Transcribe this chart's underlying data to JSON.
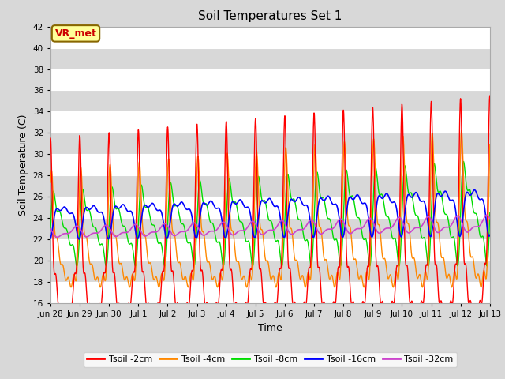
{
  "title": "Soil Temperatures Set 1",
  "xlabel": "Time",
  "ylabel": "Soil Temperature (C)",
  "ylim": [
    16,
    42
  ],
  "yticks": [
    16,
    18,
    20,
    22,
    24,
    26,
    28,
    30,
    32,
    34,
    36,
    38,
    40,
    42
  ],
  "background_color": "#d8d8d8",
  "plot_bg_color": "#d8d8d8",
  "white_band_color": "#f0f0f0",
  "series_colors": {
    "2cm": "#ff0000",
    "4cm": "#ff8800",
    "8cm": "#00dd00",
    "16cm": "#0000ff",
    "32cm": "#cc44cc"
  },
  "legend_labels": [
    "Tsoil -2cm",
    "Tsoil -4cm",
    "Tsoil -8cm",
    "Tsoil -16cm",
    "Tsoil -32cm"
  ],
  "annotation_text": "VR_met",
  "annotation_color": "#cc0000",
  "annotation_bg": "#ffff99",
  "annotation_border": "#886600",
  "xtick_labels": [
    "Jun 28",
    "Jun 29",
    "Jun 30",
    "Jul 1",
    "Jul 2",
    "Jul 3",
    "Jul 4",
    "Jul 5",
    "Jul 6",
    "Jul 7",
    "Jul 8",
    "Jul 9",
    "Jul 10",
    "Jul 11",
    "Jul 12",
    "Jul 13"
  ]
}
